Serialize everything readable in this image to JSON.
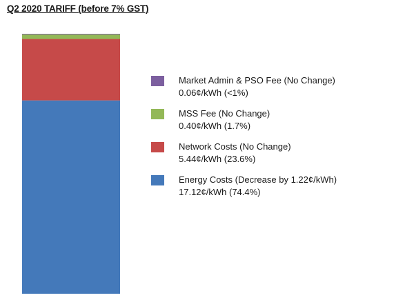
{
  "title": "Q2 2020 TARIFF (before 7% GST)",
  "chart_data": {
    "type": "bar",
    "stacked": true,
    "categories": [
      ""
    ],
    "unit": "¢/kWh",
    "series": [
      {
        "name": "Energy Costs (Decrease by 1.22¢/kWh)",
        "value_label": "17.12¢/kWh (74.4%)",
        "values": [
          17.12
        ],
        "color": "#4479ba"
      },
      {
        "name": "Network Costs (No Change)",
        "value_label": "5.44¢/kWh (23.6%)",
        "values": [
          5.44
        ],
        "color": "#c64a49"
      },
      {
        "name": "MSS Fee (No Change)",
        "value_label": "0.40¢/kWh (1.7%)",
        "values": [
          0.4
        ],
        "color": "#93b857"
      },
      {
        "name": "Market Admin & PSO Fee (No Change)",
        "value_label": "0.06¢/kWh (<1%)",
        "values": [
          0.06
        ],
        "color": "#7c5f9f"
      }
    ],
    "legend": [
      {
        "label": "Market Admin & PSO Fee (No Change)",
        "value": "0.06¢/kWh (<1%)",
        "color": "#7c5f9f"
      },
      {
        "label": "MSS Fee (No Change)",
        "value": "0.40¢/kWh (1.7%)",
        "color": "#93b857"
      },
      {
        "label": "Network Costs (No Change)",
        "value": "5.44¢/kWh (23.6%)",
        "color": "#c64a49"
      },
      {
        "label": "Energy Costs (Decrease by 1.22¢/kWh)",
        "value": "17.12¢/kWh (74.4%)",
        "color": "#4479ba"
      }
    ],
    "legend_position": "right",
    "grid": false,
    "axes_visible": false
  }
}
